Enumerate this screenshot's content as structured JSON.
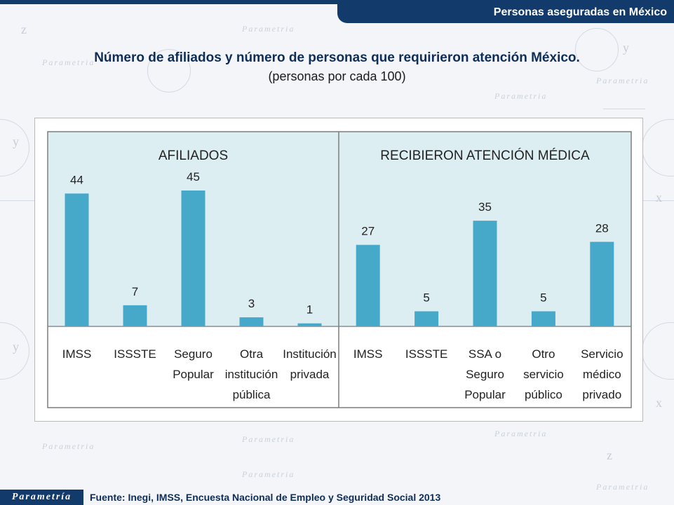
{
  "header": {
    "tab_title": "Personas aseguradas en México"
  },
  "watermark": {
    "brand": "Parametria"
  },
  "title": "Número de afiliados y número de personas que requirieron atención México.",
  "subtitle": "(personas por cada 100)",
  "footer": {
    "logo": "Parametría",
    "source": "Fuente: Inegi, IMSS, Encuesta Nacional de Empleo y Seguridad Social 2013"
  },
  "colors": {
    "bar": "#47a9c9",
    "panel_bg": "#ddeef3",
    "navy": "#123a6b"
  },
  "chart_data": [
    {
      "type": "bar",
      "title": "AFILIADOS",
      "categories": [
        [
          "IMSS"
        ],
        [
          "ISSSTE"
        ],
        [
          "Seguro",
          "Popular"
        ],
        [
          "Otra",
          "institución",
          "pública"
        ],
        [
          "Institución",
          "privada"
        ]
      ],
      "values": [
        44,
        7,
        45,
        3,
        1
      ],
      "ylim": [
        0,
        50
      ]
    },
    {
      "type": "bar",
      "title": "RECIBIERON ATENCIÓN MÉDICA",
      "categories": [
        [
          "IMSS"
        ],
        [
          "ISSSTE"
        ],
        [
          "SSA o",
          "Seguro",
          "Popular"
        ],
        [
          "Otro",
          "servicio",
          "público"
        ],
        [
          "Servicio",
          "médico",
          "privado"
        ]
      ],
      "values": [
        27,
        5,
        35,
        5,
        28
      ],
      "ylim": [
        0,
        50
      ]
    }
  ]
}
